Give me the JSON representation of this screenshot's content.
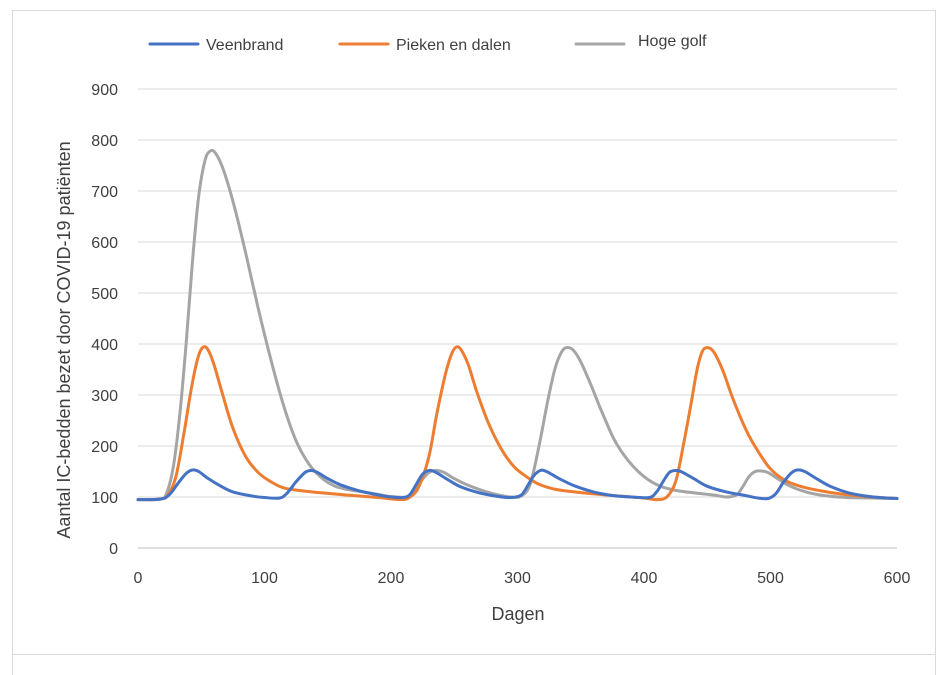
{
  "chart_data": {
    "type": "line",
    "xlabel": "Dagen",
    "ylabel": "Aantal IC-bedden bezet door COVID-19 patiënten",
    "xlim": [
      0,
      600
    ],
    "ylim": [
      0,
      900
    ],
    "xticks": [
      0,
      100,
      200,
      300,
      400,
      500,
      600
    ],
    "yticks": [
      0,
      100,
      200,
      300,
      400,
      500,
      600,
      700,
      800,
      900
    ],
    "grid": "horizontal",
    "legend_position": "top",
    "series": [
      {
        "name": "Veenbrand",
        "color": "#4472c4",
        "points": [
          [
            0,
            95
          ],
          [
            18,
            96
          ],
          [
            25,
            105
          ],
          [
            32,
            128
          ],
          [
            38,
            146
          ],
          [
            43,
            153
          ],
          [
            48,
            150
          ],
          [
            55,
            137
          ],
          [
            65,
            122
          ],
          [
            75,
            110
          ],
          [
            90,
            102
          ],
          [
            100,
            99
          ],
          [
            112,
            98
          ],
          [
            118,
            108
          ],
          [
            125,
            130
          ],
          [
            132,
            148
          ],
          [
            137,
            152
          ],
          [
            142,
            148
          ],
          [
            150,
            136
          ],
          [
            160,
            124
          ],
          [
            175,
            112
          ],
          [
            190,
            104
          ],
          [
            200,
            100
          ],
          [
            210,
            99
          ],
          [
            215,
            105
          ],
          [
            220,
            125
          ],
          [
            225,
            145
          ],
          [
            230,
            152
          ],
          [
            235,
            149
          ],
          [
            245,
            134
          ],
          [
            255,
            120
          ],
          [
            270,
            108
          ],
          [
            285,
            101
          ],
          [
            295,
            99
          ],
          [
            303,
            104
          ],
          [
            308,
            122
          ],
          [
            313,
            142
          ],
          [
            318,
            152
          ],
          [
            323,
            150
          ],
          [
            333,
            136
          ],
          [
            345,
            122
          ],
          [
            360,
            110
          ],
          [
            375,
            103
          ],
          [
            390,
            100
          ],
          [
            404,
            99
          ],
          [
            410,
            110
          ],
          [
            415,
            130
          ],
          [
            420,
            148
          ],
          [
            425,
            152
          ],
          [
            430,
            149
          ],
          [
            440,
            135
          ],
          [
            450,
            121
          ],
          [
            465,
            110
          ],
          [
            480,
            103
          ],
          [
            490,
            98
          ],
          [
            498,
            97
          ],
          [
            504,
            106
          ],
          [
            510,
            128
          ],
          [
            516,
            146
          ],
          [
            521,
            153
          ],
          [
            527,
            150
          ],
          [
            537,
            135
          ],
          [
            548,
            120
          ],
          [
            562,
            108
          ],
          [
            578,
            101
          ],
          [
            592,
            98
          ],
          [
            600,
            97
          ]
        ]
      },
      {
        "name": "Pieken en dalen",
        "color": "#ed7d31",
        "points": [
          [
            0,
            95
          ],
          [
            18,
            96
          ],
          [
            24,
            105
          ],
          [
            30,
            140
          ],
          [
            36,
            220
          ],
          [
            42,
            310
          ],
          [
            47,
            370
          ],
          [
            51,
            393
          ],
          [
            55,
            390
          ],
          [
            60,
            360
          ],
          [
            67,
            300
          ],
          [
            75,
            235
          ],
          [
            85,
            180
          ],
          [
            95,
            148
          ],
          [
            105,
            130
          ],
          [
            115,
            118
          ],
          [
            130,
            112
          ],
          [
            150,
            107
          ],
          [
            170,
            103
          ],
          [
            190,
            99
          ],
          [
            208,
            95
          ],
          [
            215,
            100
          ],
          [
            222,
            120
          ],
          [
            230,
            180
          ],
          [
            236,
            260
          ],
          [
            242,
            330
          ],
          [
            247,
            375
          ],
          [
            251,
            393
          ],
          [
            255,
            390
          ],
          [
            261,
            360
          ],
          [
            268,
            305
          ],
          [
            277,
            245
          ],
          [
            287,
            195
          ],
          [
            297,
            160
          ],
          [
            307,
            140
          ],
          [
            317,
            125
          ],
          [
            330,
            115
          ],
          [
            345,
            110
          ],
          [
            365,
            105
          ],
          [
            385,
            101
          ],
          [
            400,
            98
          ],
          [
            410,
            95
          ],
          [
            418,
            100
          ],
          [
            425,
            130
          ],
          [
            431,
            200
          ],
          [
            437,
            280
          ],
          [
            442,
            350
          ],
          [
            446,
            385
          ],
          [
            450,
            393
          ],
          [
            455,
            385
          ],
          [
            462,
            350
          ],
          [
            470,
            295
          ],
          [
            480,
            235
          ],
          [
            490,
            190
          ],
          [
            500,
            155
          ],
          [
            512,
            132
          ],
          [
            525,
            120
          ],
          [
            540,
            112
          ],
          [
            555,
            106
          ],
          [
            575,
            101
          ],
          [
            600,
            97
          ]
        ]
      },
      {
        "name": "Hoge golf",
        "color": "#a5a5a5",
        "points": [
          [
            0,
            95
          ],
          [
            18,
            96
          ],
          [
            23,
            110
          ],
          [
            28,
            160
          ],
          [
            33,
            260
          ],
          [
            38,
            400
          ],
          [
            43,
            560
          ],
          [
            48,
            690
          ],
          [
            53,
            760
          ],
          [
            57,
            778
          ],
          [
            61,
            775
          ],
          [
            67,
            745
          ],
          [
            75,
            680
          ],
          [
            85,
            580
          ],
          [
            95,
            470
          ],
          [
            105,
            370
          ],
          [
            115,
            280
          ],
          [
            125,
            210
          ],
          [
            135,
            165
          ],
          [
            145,
            138
          ],
          [
            155,
            122
          ],
          [
            165,
            115
          ],
          [
            178,
            110
          ],
          [
            190,
            105
          ],
          [
            200,
            101
          ],
          [
            212,
            100
          ],
          [
            218,
            112
          ],
          [
            225,
            135
          ],
          [
            230,
            148
          ],
          [
            236,
            152
          ],
          [
            242,
            148
          ],
          [
            250,
            136
          ],
          [
            260,
            124
          ],
          [
            272,
            113
          ],
          [
            285,
            104
          ],
          [
            295,
            100
          ],
          [
            303,
            102
          ],
          [
            310,
            125
          ],
          [
            317,
            200
          ],
          [
            324,
            290
          ],
          [
            330,
            355
          ],
          [
            335,
            385
          ],
          [
            339,
            393
          ],
          [
            344,
            388
          ],
          [
            350,
            365
          ],
          [
            358,
            320
          ],
          [
            367,
            265
          ],
          [
            377,
            210
          ],
          [
            388,
            170
          ],
          [
            400,
            140
          ],
          [
            412,
            122
          ],
          [
            425,
            113
          ],
          [
            440,
            108
          ],
          [
            455,
            104
          ],
          [
            465,
            100
          ],
          [
            473,
            104
          ],
          [
            478,
            120
          ],
          [
            483,
            140
          ],
          [
            488,
            150
          ],
          [
            493,
            151
          ],
          [
            498,
            148
          ],
          [
            505,
            137
          ],
          [
            515,
            122
          ],
          [
            528,
            110
          ],
          [
            542,
            103
          ],
          [
            560,
            99
          ],
          [
            580,
            98
          ],
          [
            600,
            97
          ]
        ]
      }
    ]
  }
}
